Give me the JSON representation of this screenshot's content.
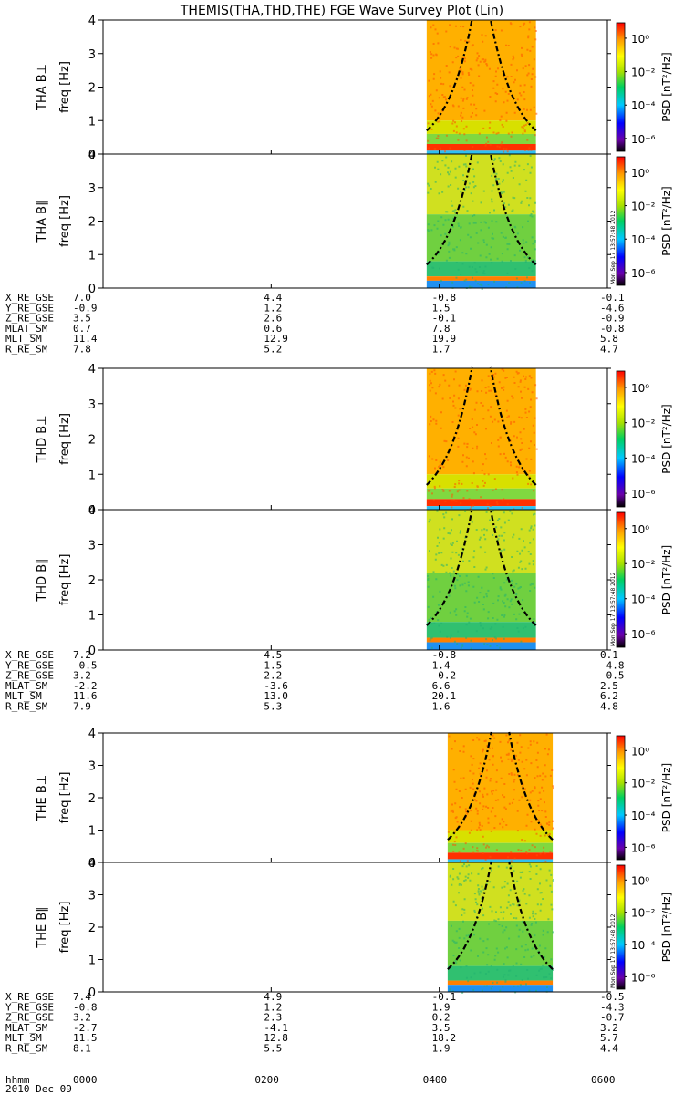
{
  "title": "THEMIS(THA,THD,THE) FGE Wave Survey Plot (Lin)",
  "stamp": "Mon Sep 17 13:57:48 2012",
  "chart_data": {
    "type": "heatmap",
    "x_unit": "hhmm",
    "x_ticks": [
      "0000",
      "0200",
      "0400",
      "0600"
    ],
    "x_range": [
      "0000",
      "0600"
    ],
    "date": "2010 Dec 09",
    "y_label_freq": "freq [Hz]",
    "y_range_hz": [
      0,
      4
    ],
    "y_ticks": [
      "0",
      "1",
      "2",
      "3",
      "4"
    ],
    "colorbar": {
      "label": "PSD [nT²/Hz]",
      "scale": "log",
      "ticks": [
        "10⁰",
        "10⁻²",
        "10⁻⁴",
        "10⁻⁶"
      ],
      "colors": [
        "#000000",
        "#6a00a8",
        "#0000ff",
        "#00c8ff",
        "#00d060",
        "#a8e000",
        "#ffff00",
        "#ff9900",
        "#ff0000"
      ]
    },
    "probes": [
      {
        "id": "THA",
        "panels": [
          {
            "label": "THA B⊥"
          },
          {
            "label": "THA B∥"
          }
        ],
        "ephemeris": [
          {
            "name": "X_RE_GSE",
            "values": [
              "7.0",
              "4.4",
              "-0.8",
              "-0.1"
            ]
          },
          {
            "name": "Y_RE_GSE",
            "values": [
              "-0.9",
              "1.2",
              "1.5",
              "-4.6"
            ]
          },
          {
            "name": "Z_RE_GSE",
            "values": [
              "3.5",
              "2.6",
              "-0.1",
              "-0.9"
            ]
          },
          {
            "name": "MLAT_SM",
            "values": [
              "0.7",
              "0.6",
              "7.8",
              "-0.8"
            ]
          },
          {
            "name": "MLT_SM",
            "values": [
              "11.4",
              "12.9",
              "19.9",
              "5.8"
            ]
          },
          {
            "name": "R_RE_SM",
            "values": [
              "7.8",
              "5.2",
              "1.7",
              "4.7"
            ]
          }
        ]
      },
      {
        "id": "THD",
        "panels": [
          {
            "label": "THD B⊥"
          },
          {
            "label": "THD B∥"
          }
        ],
        "ephemeris": [
          {
            "name": "X_RE_GSE",
            "values": [
              "7.2",
              "4.5",
              "-0.8",
              "0.1"
            ]
          },
          {
            "name": "Y_RE_GSE",
            "values": [
              "-0.5",
              "1.5",
              "1.4",
              "-4.8"
            ]
          },
          {
            "name": "Z_RE_GSE",
            "values": [
              "3.2",
              "2.2",
              "-0.2",
              "-0.5"
            ]
          },
          {
            "name": "MLAT_SM",
            "values": [
              "-2.2",
              "-3.6",
              "6.6",
              "2.5"
            ]
          },
          {
            "name": "MLT_SM",
            "values": [
              "11.6",
              "13.0",
              "20.1",
              "6.2"
            ]
          },
          {
            "name": "R_RE_SM",
            "values": [
              "7.9",
              "5.3",
              "1.6",
              "4.8"
            ]
          }
        ]
      },
      {
        "id": "THE",
        "panels": [
          {
            "label": "THE B⊥"
          },
          {
            "label": "THE B∥"
          }
        ],
        "ephemeris": [
          {
            "name": "X_RE_GSE",
            "values": [
              "7.4",
              "4.9",
              "-0.1",
              "-0.5"
            ]
          },
          {
            "name": "Y_RE_GSE",
            "values": [
              "-0.8",
              "1.2",
              "1.9",
              "-4.3"
            ]
          },
          {
            "name": "Z_RE_GSE",
            "values": [
              "3.2",
              "2.3",
              "0.2",
              "-0.7"
            ]
          },
          {
            "name": "MLAT_SM",
            "values": [
              "-2.7",
              "-4.1",
              "3.5",
              "3.2"
            ]
          },
          {
            "name": "MLT_SM",
            "values": [
              "11.5",
              "12.8",
              "18.2",
              "5.7"
            ]
          },
          {
            "name": "R_RE_SM",
            "values": [
              "8.1",
              "5.5",
              "1.9",
              "4.4"
            ]
          }
        ]
      }
    ]
  }
}
